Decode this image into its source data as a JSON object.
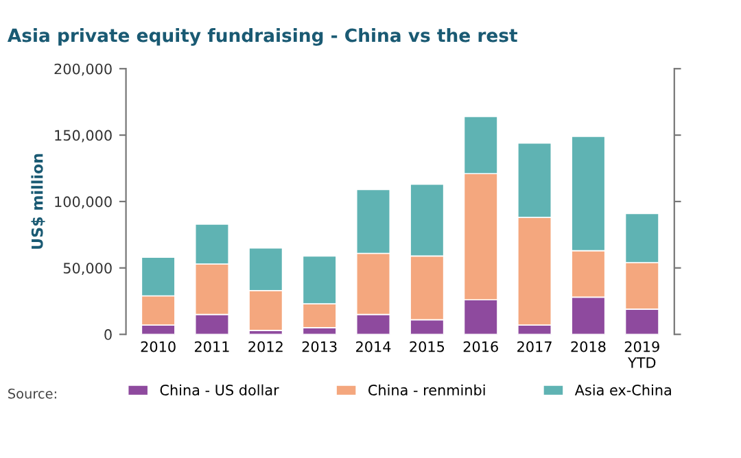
{
  "chart_data": {
    "type": "bar",
    "stacked": true,
    "title": "Asia private equity fundraising - China vs the rest",
    "ylabel": "US$ million",
    "categories": [
      "2010",
      "2011",
      "2012",
      "2013",
      "2014",
      "2015",
      "2016",
      "2017",
      "2018",
      "2019\nYTD"
    ],
    "series": [
      {
        "name": "China - US dollar",
        "color": "#8e4a9e",
        "values": [
          7000,
          15000,
          3000,
          5000,
          15000,
          11000,
          26000,
          7000,
          28000,
          19000
        ]
      },
      {
        "name": "China - renminbi",
        "color": "#f4a77e",
        "values": [
          22000,
          38000,
          30000,
          18000,
          46000,
          48000,
          95000,
          81000,
          35000,
          35000
        ]
      },
      {
        "name": "Asia ex-China",
        "color": "#5fb3b3",
        "values": [
          29000,
          30000,
          32000,
          36000,
          48000,
          54000,
          43000,
          56000,
          86000,
          37000
        ]
      }
    ],
    "ylim": [
      0,
      200000
    ],
    "yticks": [
      {
        "value": 0,
        "label": "0"
      },
      {
        "value": 50000,
        "label": "50,000"
      },
      {
        "value": 100000,
        "label": "100,000"
      },
      {
        "value": 150000,
        "label": "150,000"
      },
      {
        "value": 200000,
        "label": "200,000"
      }
    ],
    "grid": false,
    "legend": "bottom",
    "annotations": [
      "Source:"
    ]
  }
}
